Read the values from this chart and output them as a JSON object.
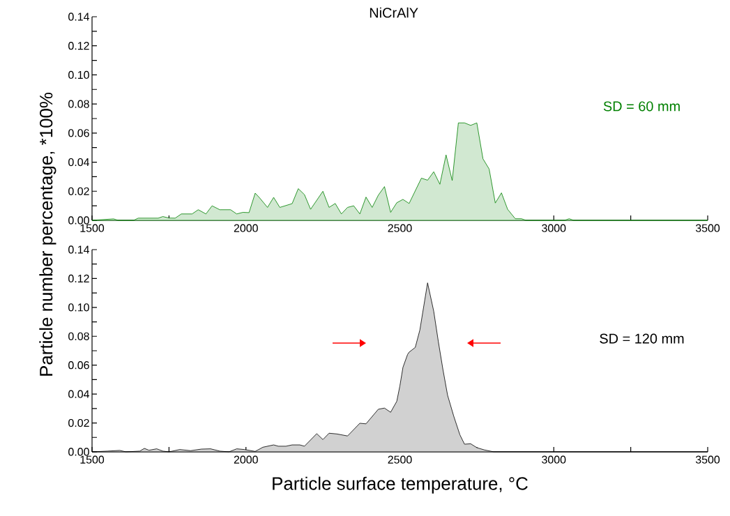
{
  "chart_data": [
    {
      "type": "area",
      "title": "NiCrAlY",
      "ylabel": "Particle number percentage, *100%",
      "xlim": [
        1500,
        3500
      ],
      "ylim": [
        0,
        0.14
      ],
      "xticks": [
        1500,
        {
          "value": 1750,
          "label": null
        },
        2000,
        {
          "value": 2250,
          "label": null
        },
        2500,
        {
          "value": 2750,
          "label": null
        },
        3000,
        {
          "value": 3250,
          "label": null
        },
        3500
      ],
      "yticks": [
        {
          "value": 0,
          "label": "0.00"
        },
        {
          "value": 0.01,
          "label": null
        },
        {
          "value": 0.02,
          "label": "0.02"
        },
        {
          "value": 0.03,
          "label": null
        },
        {
          "value": 0.04,
          "label": "0.04"
        },
        {
          "value": 0.05,
          "label": null
        },
        {
          "value": 0.06,
          "label": "0.06"
        },
        {
          "value": 0.07,
          "label": null
        },
        {
          "value": 0.08,
          "label": "0.08"
        },
        {
          "value": 0.09,
          "label": null
        },
        {
          "value": 0.1,
          "label": "0.10"
        },
        {
          "value": 0.11,
          "label": null
        },
        {
          "value": 0.12,
          "label": "0.12"
        },
        {
          "value": 0.13,
          "label": null
        },
        {
          "value": 0.14,
          "label": "0.14"
        }
      ],
      "series": [
        {
          "name": "SD = 60 mm",
          "color": "#008000",
          "x": [
            1500,
            1570,
            1585,
            1635,
            1650,
            1715,
            1730,
            1750,
            1770,
            1790,
            1825,
            1845,
            1870,
            1890,
            1915,
            1950,
            1970,
            1990,
            2010,
            2030,
            2045,
            2070,
            2090,
            2110,
            2150,
            2170,
            2190,
            2210,
            2250,
            2270,
            2290,
            2310,
            2330,
            2350,
            2370,
            2390,
            2410,
            2430,
            2450,
            2470,
            2490,
            2510,
            2530,
            2570,
            2590,
            2610,
            2630,
            2650,
            2670,
            2690,
            2710,
            2730,
            2750,
            2770,
            2790,
            2810,
            2830,
            2850,
            2875,
            2895,
            2910,
            3035,
            3050,
            3065,
            3500
          ],
          "values": [
            0,
            0.001,
            0,
            0,
            0.0015,
            0.0015,
            0.0026,
            0.0016,
            0.0015,
            0.0044,
            0.0044,
            0.0073,
            0.0044,
            0.01,
            0.0073,
            0.0073,
            0.0044,
            0.0055,
            0.0053,
            0.0187,
            0.0153,
            0.0089,
            0.0158,
            0.0089,
            0.0115,
            0.0218,
            0.0177,
            0.0076,
            0.02,
            0.0089,
            0.0116,
            0.0044,
            0.0089,
            0.01,
            0.0044,
            0.016,
            0.0089,
            0.0173,
            0.0232,
            0.0055,
            0.0121,
            0.0144,
            0.0116,
            0.029,
            0.0276,
            0.0334,
            0.0248,
            0.045,
            0.0274,
            0.067,
            0.067,
            0.0653,
            0.067,
            0.0423,
            0.0353,
            0.0119,
            0.0189,
            0.0076,
            0.0011,
            0.0011,
            0,
            0,
            0.0011,
            0,
            0
          ]
        }
      ]
    },
    {
      "type": "area",
      "xlabel": "Particle surface temperature, °C",
      "xlim": [
        1500,
        3500
      ],
      "ylim": [
        0,
        0.14
      ],
      "xticks": [
        1500,
        {
          "value": 1750,
          "label": null
        },
        2000,
        {
          "value": 2250,
          "label": null
        },
        2500,
        {
          "value": 2750,
          "label": null
        },
        3000,
        {
          "value": 3250,
          "label": null
        },
        3500
      ],
      "yticks": [
        {
          "value": 0,
          "label": "0.00"
        },
        {
          "value": 0.01,
          "label": null
        },
        {
          "value": 0.02,
          "label": "0.02"
        },
        {
          "value": 0.03,
          "label": null
        },
        {
          "value": 0.04,
          "label": "0.04"
        },
        {
          "value": 0.05,
          "label": null
        },
        {
          "value": 0.06,
          "label": "0.06"
        },
        {
          "value": 0.07,
          "label": null
        },
        {
          "value": 0.08,
          "label": "0.08"
        },
        {
          "value": 0.09,
          "label": null
        },
        {
          "value": 0.1,
          "label": "0.10"
        },
        {
          "value": 0.11,
          "label": null
        },
        {
          "value": 0.12,
          "label": "0.12"
        },
        {
          "value": 0.13,
          "label": null
        },
        {
          "value": 0.14,
          "label": "0.14"
        }
      ],
      "series": [
        {
          "name": "SD = 120 mm",
          "color": "#000000",
          "x": [
            1500,
            1550,
            1590,
            1610,
            1655,
            1670,
            1685,
            1710,
            1730,
            1750,
            1785,
            1820,
            1855,
            1885,
            1915,
            1945,
            1970,
            1995,
            2030,
            2055,
            2090,
            2105,
            2130,
            2150,
            2175,
            2190,
            2230,
            2250,
            2270,
            2295,
            2330,
            2370,
            2390,
            2430,
            2450,
            2470,
            2490,
            2500,
            2510,
            2525,
            2530,
            2550,
            2565,
            2590,
            2610,
            2625,
            2640,
            2655,
            2675,
            2695,
            2710,
            2730,
            2750,
            2775,
            2805,
            3500
          ],
          "values": [
            0,
            0.0005,
            0.001,
            0,
            0.0005,
            0.0024,
            0.0011,
            0.0021,
            0.0005,
            0,
            0.0016,
            0.0008,
            0.0019,
            0.0021,
            0.0005,
            0,
            0.0021,
            0.0016,
            0.0003,
            0.0032,
            0.0048,
            0.0039,
            0.0039,
            0.0048,
            0.0048,
            0.0039,
            0.0126,
            0.0085,
            0.0129,
            0.0124,
            0.011,
            0.0198,
            0.0194,
            0.0295,
            0.0303,
            0.0274,
            0.035,
            0.0456,
            0.0585,
            0.0674,
            0.069,
            0.0723,
            0.0844,
            0.117,
            0.0973,
            0.0763,
            0.0569,
            0.0392,
            0.0247,
            0.0118,
            0.0053,
            0.0056,
            0.0029,
            0.0013,
            0,
            0
          ]
        }
      ]
    }
  ]
}
